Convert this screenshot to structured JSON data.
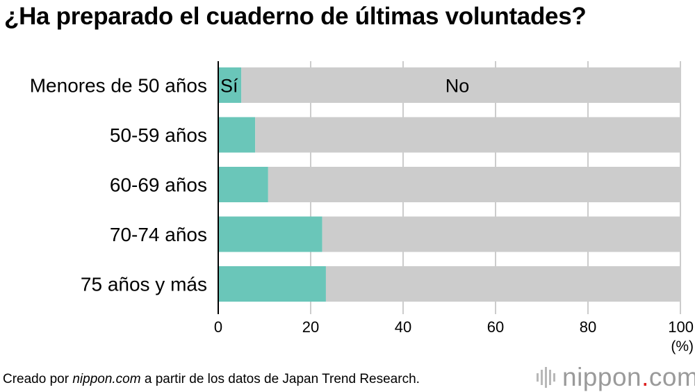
{
  "title": "¿Ha preparado el cuaderno de últimas voluntades?",
  "footer": {
    "prefix": "Creado por ",
    "source_site": "nippon.com",
    "suffix": " a partir de los datos de Japan Trend Research."
  },
  "logo": {
    "name": "nippon",
    "dot": ".",
    "tld": "com"
  },
  "colors": {
    "yes": "#6ac6b9",
    "no": "#cccccc",
    "grid": "#9a9a9a"
  },
  "chart_data": {
    "type": "bar",
    "orientation": "horizontal",
    "stacked": true,
    "categories": [
      "Menores de 50 años",
      "50-59 años",
      "60-69 años",
      "70-74 años",
      "75 años y más"
    ],
    "series": [
      {
        "name": "Sí",
        "values": [
          5,
          8,
          10.8,
          22.5,
          23.3
        ]
      },
      {
        "name": "No",
        "values": [
          95,
          92,
          89.2,
          77.5,
          76.7
        ]
      }
    ],
    "xlim": [
      0,
      100
    ],
    "xticks": [
      0,
      20,
      40,
      60,
      80,
      100
    ],
    "xlabel": "(%)",
    "ylabel": "",
    "grid": true
  }
}
